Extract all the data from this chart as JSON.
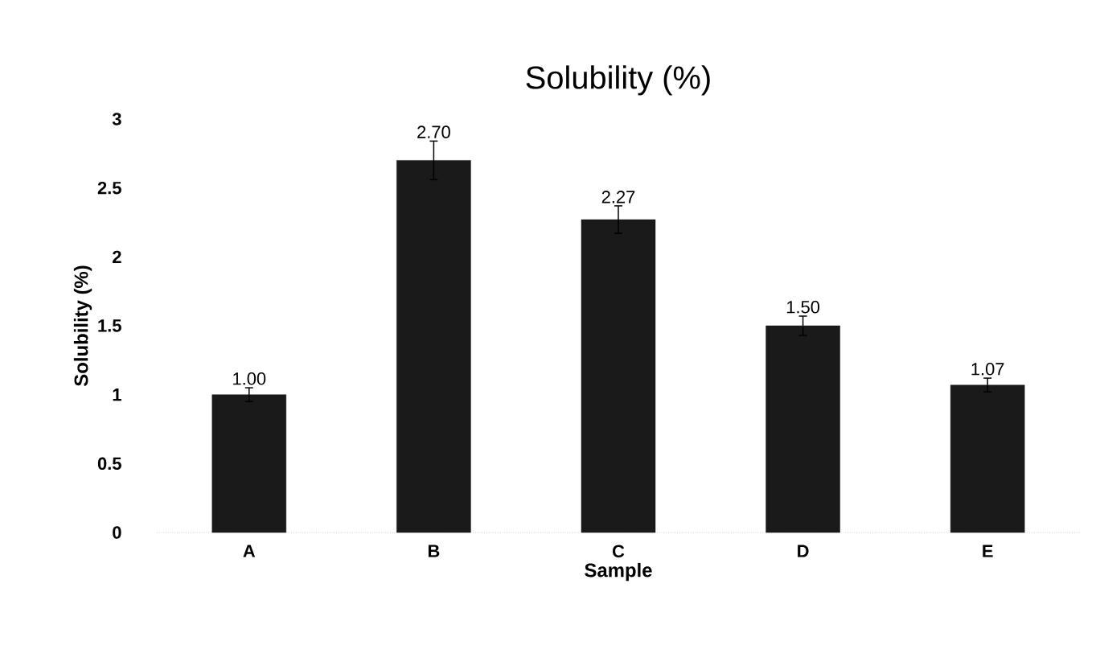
{
  "chart_data": {
    "type": "bar",
    "title": "Solubility (%)",
    "xlabel": "Sample",
    "ylabel": "Solubility (%)",
    "categories": [
      "A",
      "B",
      "C",
      "D",
      "E"
    ],
    "values": [
      1.0,
      2.7,
      2.27,
      1.5,
      1.07
    ],
    "value_labels": [
      "1.00",
      "2.70",
      "2.27",
      "1.50",
      "1.07"
    ],
    "errors": [
      0.05,
      0.14,
      0.1,
      0.07,
      0.05
    ],
    "color": "#1a1a1a",
    "ylim": [
      0,
      3
    ],
    "yticks": [
      0,
      0.5,
      1,
      1.5,
      2,
      2.5,
      3
    ],
    "grid": false
  }
}
